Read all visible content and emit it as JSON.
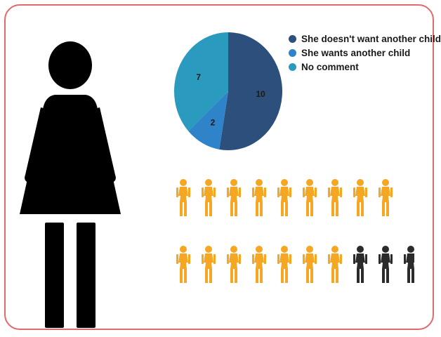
{
  "colors": {
    "border": "#e06a6a",
    "silhouette": "#000000",
    "figure_yes": "#f5a623",
    "figure_no": "#2b2b2b"
  },
  "chart_data": {
    "type": "pie",
    "legend_position": "right",
    "slices": [
      {
        "label": "She doesn't want another child",
        "value": 10,
        "color": "#2c4f7c"
      },
      {
        "label": "She wants another child",
        "value": 2,
        "color": "#2e83c9"
      },
      {
        "label": "No comment",
        "value": 7,
        "color": "#2a9bbf"
      }
    ]
  },
  "pictogram": {
    "rows": [
      {
        "orange": 9,
        "black": 0
      },
      {
        "orange": 7,
        "black": 3
      }
    ]
  }
}
